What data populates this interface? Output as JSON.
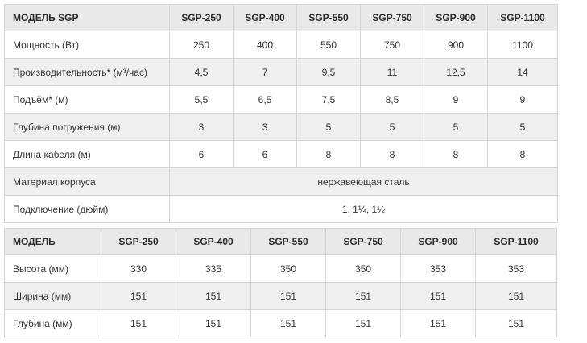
{
  "spec_table": {
    "header": [
      "МОДЕЛЬ SGP",
      "SGP-250",
      "SGP-400",
      "SGP-550",
      "SGP-750",
      "SGP-900",
      "SGP-1100"
    ],
    "rows": [
      {
        "label": "Мощность (Вт)",
        "values": [
          "250",
          "400",
          "550",
          "750",
          "900",
          "1100"
        ]
      },
      {
        "label": "Производительность* (м³/час)",
        "values": [
          "4,5",
          "7",
          "9,5",
          "11",
          "12,5",
          "14"
        ]
      },
      {
        "label": "Подъём* (м)",
        "values": [
          "5,5",
          "6,5",
          "7,5",
          "8,5",
          "9",
          "9"
        ]
      },
      {
        "label": "Глубина погружения (м)",
        "values": [
          "3",
          "3",
          "5",
          "5",
          "5",
          "5"
        ]
      },
      {
        "label": "Длина кабеля (м)",
        "values": [
          "6",
          "6",
          "8",
          "8",
          "8",
          "8"
        ]
      }
    ],
    "merged_rows": [
      {
        "label": "Материал корпуса",
        "value": "нержавеющая сталь"
      },
      {
        "label": "Подключение (дюйм)",
        "value": "1, 1¼, 1½"
      }
    ]
  },
  "dim_table": {
    "header": [
      "МОДЕЛЬ",
      "SGP-250",
      "SGP-400",
      "SGP-550",
      "SGP-750",
      "SGP-900",
      "SGP-1100"
    ],
    "rows": [
      {
        "label": "Высота (мм)",
        "values": [
          "330",
          "335",
          "350",
          "350",
          "353",
          "353"
        ]
      },
      {
        "label": "Ширина (мм)",
        "values": [
          "151",
          "151",
          "151",
          "151",
          "151",
          "151"
        ]
      },
      {
        "label": "Глубина (мм)",
        "values": [
          "151",
          "151",
          "151",
          "151",
          "151",
          "151"
        ]
      }
    ]
  }
}
